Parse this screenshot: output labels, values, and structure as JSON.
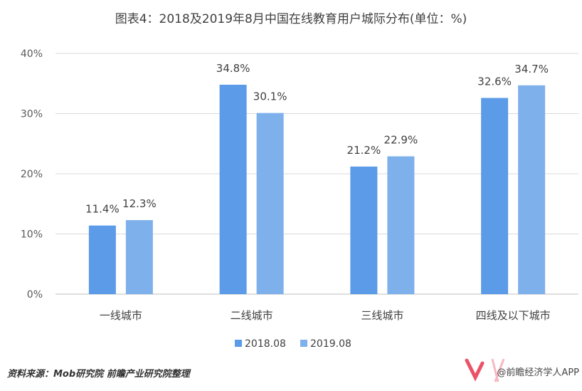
{
  "chart_data": {
    "type": "bar",
    "title": "图表4：2018及2019年8月中国在线教育用户城际分布(单位：%)",
    "categories": [
      "一线城市",
      "二线城市",
      "三线城市",
      "四线及以下城市"
    ],
    "series": [
      {
        "name": "2018.08",
        "values": [
          11.4,
          34.8,
          21.2,
          32.6
        ],
        "labels": [
          "11.4%",
          "34.8%",
          "21.2%",
          "32.6%"
        ]
      },
      {
        "name": "2019.08",
        "values": [
          12.3,
          30.1,
          22.9,
          34.7
        ],
        "labels": [
          "12.3%",
          "30.1%",
          "22.9%",
          "34.7%"
        ]
      }
    ],
    "yticks": [
      0,
      10,
      20,
      30,
      40
    ],
    "ytick_labels": [
      "0%",
      "10%",
      "20%",
      "30%",
      "40%"
    ],
    "ylim": [
      0,
      40
    ],
    "grid": true,
    "legend_position": "bottom",
    "colors": [
      "#5b9be8",
      "#7eb0ec"
    ]
  },
  "footer": {
    "source": "资料来源：Mob研究院 前瞻产业研究院整理",
    "brand": "@前瞻经济学人APP"
  }
}
